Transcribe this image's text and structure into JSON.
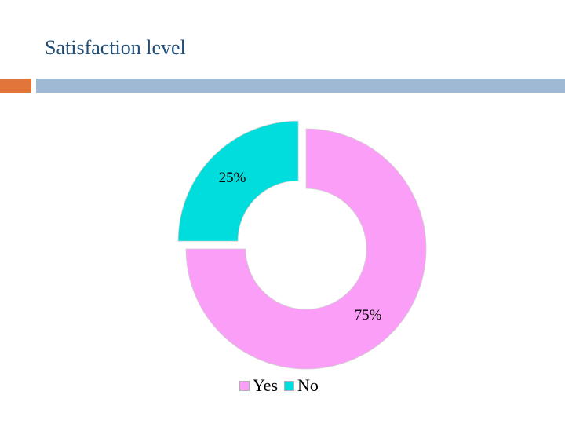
{
  "slide": {
    "title": "Satisfaction level",
    "colors": {
      "accent": "#e0763a",
      "rule": "#9fb8d3"
    }
  },
  "chart_data": {
    "type": "pie",
    "style": "donut",
    "title": "",
    "slices": [
      {
        "label": "Yes",
        "value": 75,
        "display": "75%",
        "color": "#fb9ef8",
        "exploded": false
      },
      {
        "label": "No",
        "value": 25,
        "display": "25%",
        "color": "#00dddc",
        "exploded": true
      }
    ],
    "legend_position": "bottom"
  }
}
